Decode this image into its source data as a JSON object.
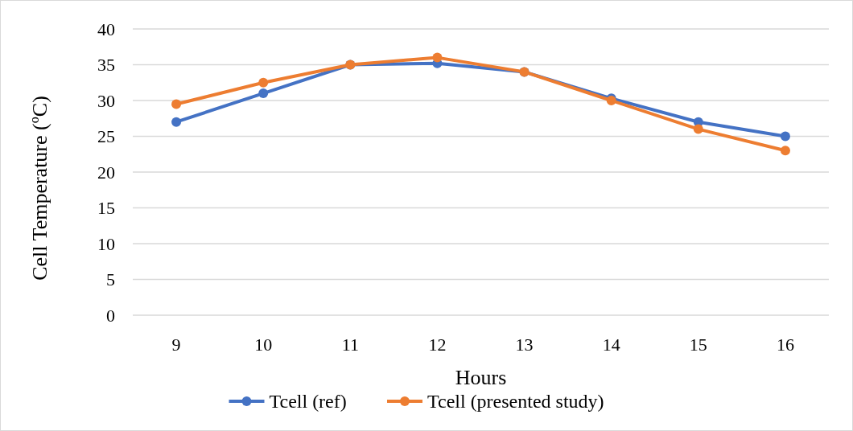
{
  "chart_data": {
    "type": "line",
    "xlabel": "Hours",
    "ylabel": "Cell Temperature (ºC)",
    "categories": [
      "9",
      "10",
      "11",
      "12",
      "13",
      "14",
      "15",
      "16"
    ],
    "series": [
      {
        "name": "Tcell (ref)",
        "color": "#4472c4",
        "values": [
          27,
          31,
          35,
          35.2,
          34,
          30.3,
          27,
          25
        ]
      },
      {
        "name": "Tcell (presented study)",
        "color": "#ed7d31",
        "values": [
          29.5,
          32.5,
          35,
          36,
          34,
          30,
          26,
          23
        ]
      }
    ],
    "ylim": [
      0,
      40
    ],
    "yticks": [
      0,
      5,
      10,
      15,
      20,
      25,
      30,
      35,
      40
    ],
    "grid": "y",
    "legend": "bottom",
    "marker": "circle",
    "line_style": "solid"
  }
}
